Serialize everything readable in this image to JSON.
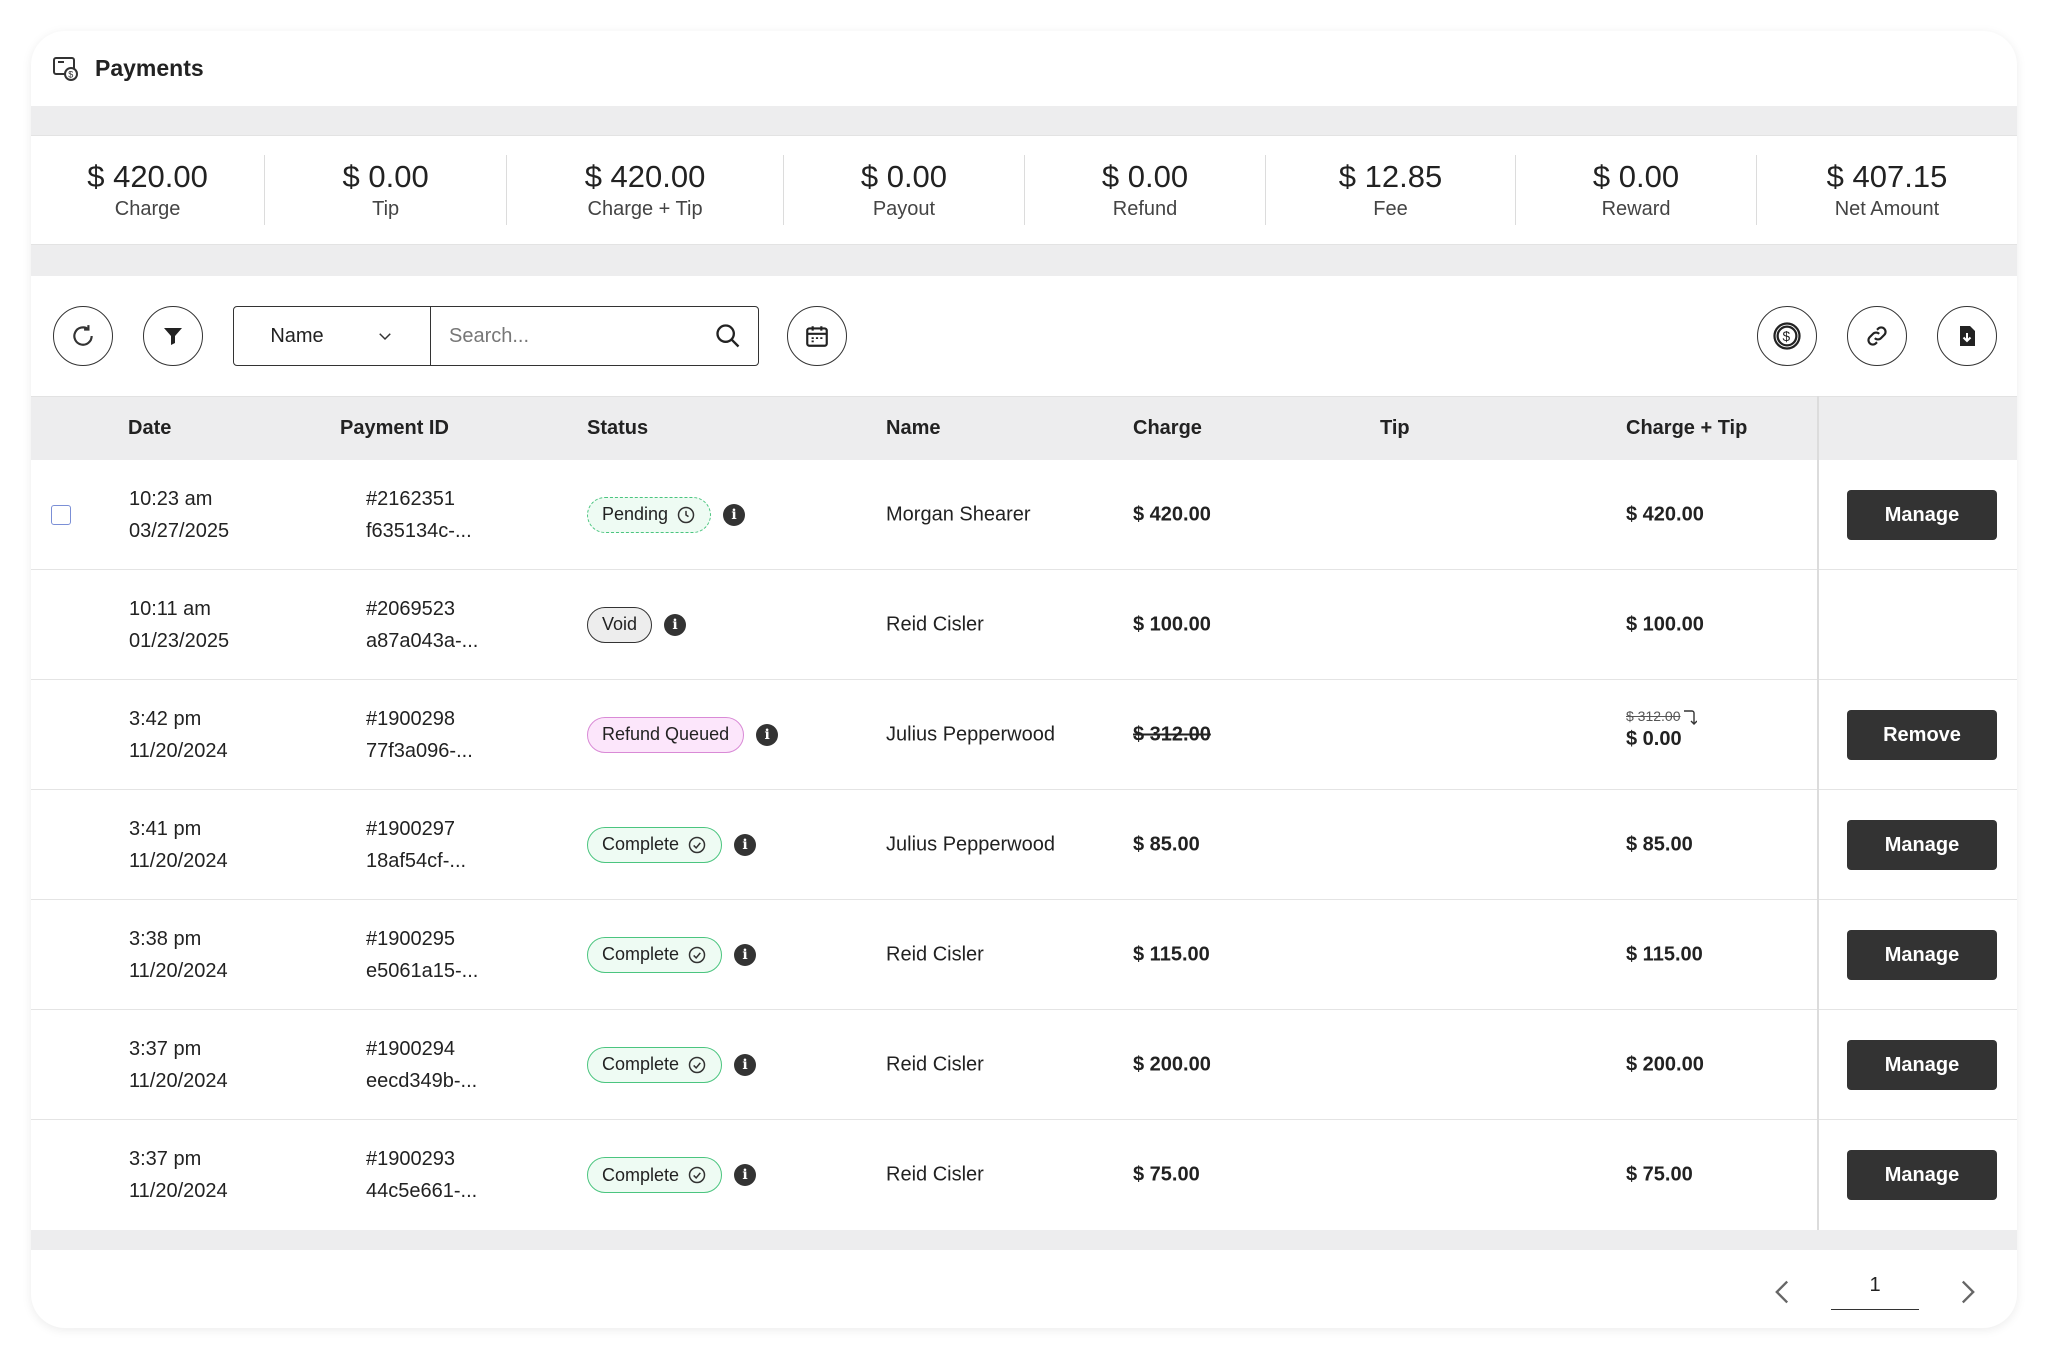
{
  "header": {
    "title": "Payments",
    "icon": "payments-icon"
  },
  "summary": [
    {
      "value": "$ 420.00",
      "label": "Charge"
    },
    {
      "value": "$ 0.00",
      "label": "Tip"
    },
    {
      "value": "$ 420.00",
      "label": "Charge + Tip"
    },
    {
      "value": "$ 0.00",
      "label": "Payout"
    },
    {
      "value": "$ 0.00",
      "label": "Refund"
    },
    {
      "value": "$ 12.85",
      "label": "Fee"
    },
    {
      "value": "$ 0.00",
      "label": "Reward"
    },
    {
      "value": "$ 407.15",
      "label": "Net Amount"
    }
  ],
  "toolbar": {
    "filter_field": "Name",
    "search_placeholder": "Search..."
  },
  "table": {
    "columns": [
      "Date",
      "Payment ID",
      "Status",
      "Name",
      "Charge",
      "Tip",
      "Charge + Tip"
    ],
    "rows": [
      {
        "time": "10:23 am",
        "date": "03/27/2025",
        "id": "#2162351",
        "hash": "f635134c-...",
        "status": "Pending",
        "name": "Morgan Shearer",
        "charge": "$ 420.00",
        "charge_tip": "$ 420.00",
        "action": "Manage"
      },
      {
        "time": "10:11 am",
        "date": "01/23/2025",
        "id": "#2069523",
        "hash": "a87a043a-...",
        "status": "Void",
        "name": "Reid Cisler",
        "charge": "$ 100.00",
        "charge_tip": "$ 100.00",
        "action": ""
      },
      {
        "time": "3:42 pm",
        "date": "11/20/2024",
        "id": "#1900298",
        "hash": "77f3a096-...",
        "status": "Refund Queued",
        "name": "Julius Pepperwood",
        "charge": "$ 312.00",
        "charge_tip_old": "$ 312.00",
        "charge_tip": "$ 0.00",
        "action": "Remove"
      },
      {
        "time": "3:41 pm",
        "date": "11/20/2024",
        "id": "#1900297",
        "hash": "18af54cf-...",
        "status": "Complete",
        "name": "Julius Pepperwood",
        "charge": "$ 85.00",
        "charge_tip": "$ 85.00",
        "action": "Manage"
      },
      {
        "time": "3:38 pm",
        "date": "11/20/2024",
        "id": "#1900295",
        "hash": "e5061a15-...",
        "status": "Complete",
        "name": "Reid Cisler",
        "charge": "$ 115.00",
        "charge_tip": "$ 115.00",
        "action": "Manage"
      },
      {
        "time": "3:37 pm",
        "date": "11/20/2024",
        "id": "#1900294",
        "hash": "eecd349b-...",
        "status": "Complete",
        "name": "Reid Cisler",
        "charge": "$ 200.00",
        "charge_tip": "$ 200.00",
        "action": "Manage"
      },
      {
        "time": "3:37 pm",
        "date": "11/20/2024",
        "id": "#1900293",
        "hash": "44c5e661-...",
        "status": "Complete",
        "name": "Reid Cisler",
        "charge": "$ 75.00",
        "charge_tip": "$ 75.00",
        "action": "Manage"
      }
    ]
  },
  "pagination": {
    "current_page": "1"
  },
  "colors": {
    "accent_dark": "#333333",
    "pending_green": "#4bc57f",
    "refund_pink": "#d98ad6",
    "band_gray": "#ededee"
  }
}
